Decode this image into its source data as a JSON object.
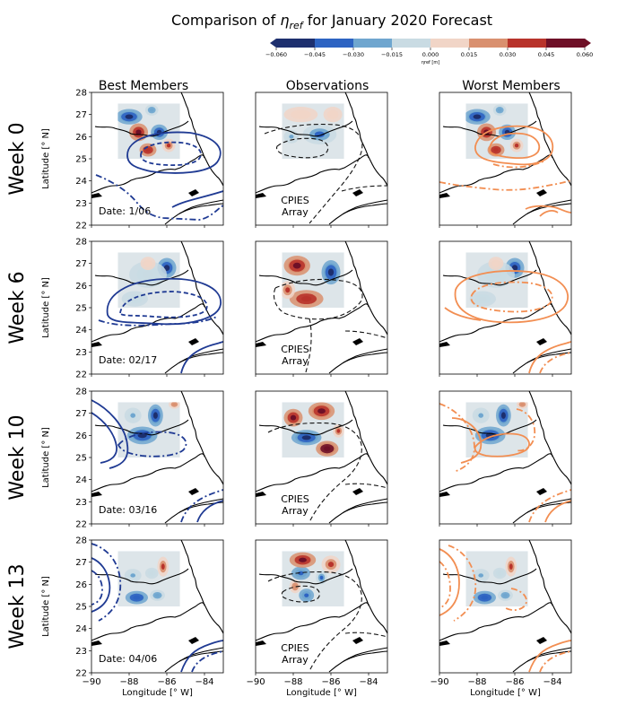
{
  "figure": {
    "title_main": "Comparison of ",
    "title_symbol": "η",
    "title_sub": "ref",
    "title_tail": " for January 2020 Forecast"
  },
  "colorbar": {
    "ticks": [
      "−0.060",
      "−0.045",
      "−0.030",
      "−0.015",
      "0.000",
      "0.015",
      "0.030",
      "0.045",
      "0.060"
    ],
    "label": "ηref [m]",
    "colors": [
      "#1d2f6e",
      "#2d63c2",
      "#6fa6cf",
      "#c9dbe3",
      "#f1d5c7",
      "#d9906f",
      "#b8332b",
      "#6e1027"
    ]
  },
  "columns": [
    "Best Members",
    "Observations",
    "Worst Members"
  ],
  "rows": [
    {
      "week": "Week 0",
      "date": "Date: 1/06"
    },
    {
      "week": "Week 6",
      "date": "Date: 02/17"
    },
    {
      "week": "Week 10",
      "date": "Date: 03/16"
    },
    {
      "week": "Week 13",
      "date": "Date: 04/06"
    }
  ],
  "array_label_line1": "CPIES",
  "array_label_line2": "Array",
  "axes": {
    "ylabel": "Latitude [° N]",
    "xlabel": "Longitude [° W]",
    "yticks": [
      "22",
      "23",
      "24",
      "25",
      "26",
      "27",
      "28"
    ],
    "xticks": [
      "−90",
      "−88",
      "−86",
      "−84"
    ]
  },
  "colors": {
    "best_contour": "#1f3a93",
    "worst_contour": "#f28e52",
    "obs_contour": "#111111",
    "coast": "#000000"
  },
  "chart_data": {
    "type": "heatmap",
    "title": "Comparison of η_ref for January 2020 Forecast",
    "variable": "η_ref [m]",
    "color_range": [
      -0.06,
      0.06
    ],
    "xlim": [
      -90,
      -83
    ],
    "ylim": [
      22,
      28
    ],
    "data_box": {
      "lon": [
        -88.6,
        -85.3
      ],
      "lat": [
        25.0,
        27.5
      ]
    },
    "panels": [
      {
        "row": "Week 0",
        "col": "Best Members",
        "blobs": [
          [
            -88.0,
            26.9,
            0.7,
            0.35,
            -0.05
          ],
          [
            -87.5,
            26.2,
            0.5,
            0.4,
            0.045
          ],
          [
            -86.4,
            26.2,
            0.45,
            0.35,
            -0.05
          ],
          [
            -87.0,
            25.4,
            0.45,
            0.3,
            0.04
          ],
          [
            -85.9,
            25.6,
            0.35,
            0.3,
            0.03
          ],
          [
            -86.8,
            27.2,
            0.35,
            0.25,
            -0.03
          ]
        ]
      },
      {
        "row": "Week 0",
        "col": "Observations",
        "blobs": [
          [
            -86.6,
            26.1,
            0.9,
            0.45,
            -0.035
          ],
          [
            -88.1,
            26.0,
            0.4,
            0.3,
            -0.02
          ],
          [
            -87.6,
            27.0,
            0.9,
            0.35,
            0.012
          ],
          [
            -85.9,
            27.0,
            0.5,
            0.35,
            0.012
          ]
        ]
      },
      {
        "row": "Week 0",
        "col": "Worst Members",
        "blobs": [
          [
            -88.0,
            26.9,
            0.7,
            0.35,
            -0.05
          ],
          [
            -87.5,
            26.2,
            0.5,
            0.4,
            0.045
          ],
          [
            -86.4,
            26.2,
            0.45,
            0.35,
            -0.05
          ],
          [
            -87.0,
            25.4,
            0.45,
            0.3,
            0.04
          ],
          [
            -85.9,
            25.6,
            0.35,
            0.3,
            0.03
          ],
          [
            -86.8,
            27.2,
            0.35,
            0.25,
            -0.03
          ]
        ]
      },
      {
        "row": "Week 6",
        "col": "Best Members",
        "blobs": [
          [
            -86.0,
            26.8,
            0.5,
            0.45,
            -0.05
          ],
          [
            -87.0,
            26.5,
            1.0,
            0.6,
            -0.015
          ],
          [
            -87.7,
            25.4,
            0.7,
            0.35,
            -0.015
          ],
          [
            -87.0,
            27.0,
            0.4,
            0.3,
            0.008
          ]
        ]
      },
      {
        "row": "Week 6",
        "col": "Observations",
        "blobs": [
          [
            -86.0,
            26.6,
            0.5,
            0.55,
            -0.06
          ],
          [
            -87.8,
            26.9,
            0.7,
            0.45,
            0.05
          ],
          [
            -87.3,
            25.4,
            0.9,
            0.4,
            0.04
          ],
          [
            -88.3,
            25.8,
            0.4,
            0.4,
            0.03
          ]
        ]
      },
      {
        "row": "Week 6",
        "col": "Worst Members",
        "blobs": [
          [
            -86.0,
            26.8,
            0.5,
            0.45,
            -0.05
          ],
          [
            -87.0,
            26.5,
            1.0,
            0.6,
            -0.015
          ],
          [
            -87.7,
            25.4,
            0.7,
            0.35,
            -0.015
          ],
          [
            -87.0,
            27.0,
            0.4,
            0.3,
            0.008
          ]
        ]
      },
      {
        "row": "Week 10",
        "col": "Best Members",
        "blobs": [
          [
            -86.6,
            26.9,
            0.4,
            0.5,
            -0.06
          ],
          [
            -87.3,
            26.0,
            0.8,
            0.4,
            -0.05
          ],
          [
            -87.8,
            26.9,
            0.45,
            0.35,
            -0.02
          ],
          [
            -85.6,
            27.4,
            0.3,
            0.2,
            0.02
          ]
        ]
      },
      {
        "row": "Week 10",
        "col": "Observations",
        "blobs": [
          [
            -87.3,
            25.9,
            0.8,
            0.35,
            -0.06
          ],
          [
            -88.0,
            26.8,
            0.5,
            0.4,
            0.05
          ],
          [
            -86.5,
            27.1,
            0.7,
            0.4,
            0.055
          ],
          [
            -86.2,
            25.4,
            0.6,
            0.35,
            0.06
          ],
          [
            -85.6,
            26.2,
            0.3,
            0.3,
            0.03
          ]
        ]
      },
      {
        "row": "Week 10",
        "col": "Worst Members",
        "blobs": [
          [
            -86.6,
            26.9,
            0.4,
            0.5,
            -0.06
          ],
          [
            -87.3,
            26.0,
            0.8,
            0.4,
            -0.05
          ],
          [
            -87.8,
            26.9,
            0.45,
            0.35,
            -0.02
          ],
          [
            -85.6,
            27.4,
            0.3,
            0.2,
            0.02
          ]
        ]
      },
      {
        "row": "Week 13",
        "col": "Best Members",
        "blobs": [
          [
            -87.6,
            25.4,
            0.6,
            0.3,
            -0.045
          ],
          [
            -86.5,
            25.5,
            0.4,
            0.25,
            -0.03
          ],
          [
            -86.2,
            26.8,
            0.3,
            0.45,
            0.035
          ],
          [
            -87.8,
            26.4,
            0.45,
            0.3,
            -0.02
          ],
          [
            -86.8,
            26.5,
            0.35,
            0.25,
            -0.015
          ]
        ]
      },
      {
        "row": "Week 13",
        "col": "Observations",
        "blobs": [
          [
            -87.6,
            26.5,
            0.5,
            0.3,
            -0.04
          ],
          [
            -87.3,
            25.5,
            0.4,
            0.3,
            -0.04
          ],
          [
            -86.5,
            26.3,
            0.3,
            0.3,
            -0.035
          ],
          [
            -87.5,
            27.1,
            0.7,
            0.35,
            0.045
          ],
          [
            -86.0,
            26.9,
            0.5,
            0.4,
            0.03
          ],
          [
            -87.9,
            25.9,
            0.3,
            0.3,
            0.02
          ]
        ]
      },
      {
        "row": "Week 13",
        "col": "Worst Members",
        "blobs": [
          [
            -87.6,
            25.4,
            0.6,
            0.3,
            -0.045
          ],
          [
            -86.5,
            25.5,
            0.4,
            0.25,
            -0.03
          ],
          [
            -86.2,
            26.8,
            0.3,
            0.45,
            0.035
          ],
          [
            -87.8,
            26.4,
            0.45,
            0.3,
            -0.02
          ],
          [
            -86.8,
            26.5,
            0.35,
            0.25,
            -0.015
          ]
        ]
      }
    ]
  }
}
